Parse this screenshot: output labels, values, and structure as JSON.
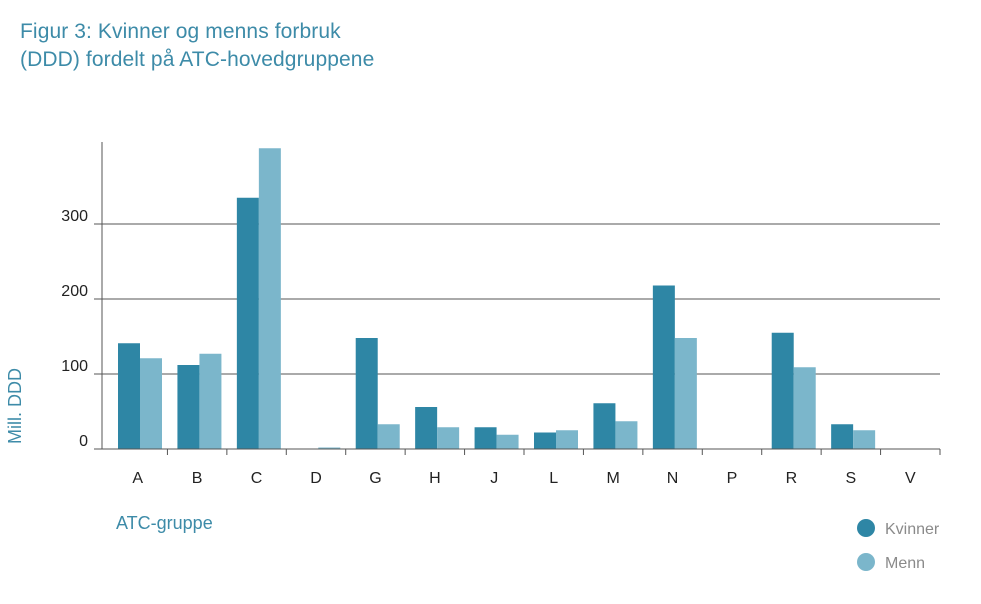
{
  "title_lines": [
    "Figur 3: Kvinner og menns forbruk",
    "(DDD) fordelt på ATC-hovedgruppene"
  ],
  "chart_data": {
    "type": "bar",
    "title": "Figur 3: Kvinner og menns forbruk (DDD) fordelt på ATC-hovedgruppene",
    "xlabel": "ATC-gruppe",
    "ylabel": "Mill. DDD",
    "categories": [
      "A",
      "B",
      "C",
      "D",
      "G",
      "H",
      "J",
      "L",
      "M",
      "N",
      "P",
      "R",
      "S",
      "V"
    ],
    "series": [
      {
        "name": "Kvinner",
        "color": "#2e86a5",
        "values": [
          141,
          112,
          335,
          0,
          148,
          56,
          29,
          22,
          61,
          218,
          0,
          155,
          33,
          0
        ]
      },
      {
        "name": "Menn",
        "color": "#7bb6cb",
        "values": [
          121,
          127,
          401,
          2,
          33,
          29,
          19,
          25,
          37,
          148,
          0,
          109,
          25,
          0
        ]
      }
    ],
    "yticks": [
      0,
      100,
      200,
      300
    ],
    "ylim": [
      0,
      410
    ],
    "grid": true,
    "legend_position": "bottom-right"
  }
}
